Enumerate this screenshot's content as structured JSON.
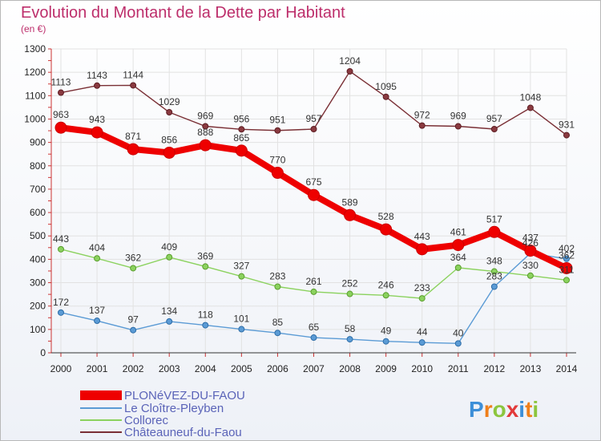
{
  "chart_data": {
    "type": "line",
    "title": "Evolution du Montant de la Dette par Habitant",
    "unit": "(en €)",
    "categories": [
      "2000",
      "2001",
      "2002",
      "2003",
      "2004",
      "2005",
      "2006",
      "2007",
      "2008",
      "2009",
      "2010",
      "2011",
      "2012",
      "2013",
      "2014"
    ],
    "ylim": [
      0,
      1300
    ],
    "yticks": [
      0,
      100,
      200,
      300,
      400,
      500,
      600,
      700,
      800,
      900,
      1000,
      1100,
      1200,
      1300
    ],
    "grid": true,
    "legend_position": "bottom-left",
    "series": [
      {
        "name": "PLONéVEZ-DU-FAOU",
        "color": "#ee0000",
        "values": [
          963,
          943,
          871,
          856,
          888,
          865,
          770,
          675,
          589,
          528,
          443,
          461,
          517,
          437,
          362
        ]
      },
      {
        "name": "Le Cloître-Pleyben",
        "color": "#5b9bd5",
        "values": [
          172,
          137,
          97,
          134,
          118,
          101,
          85,
          65,
          58,
          49,
          44,
          40,
          283,
          426,
          402
        ]
      },
      {
        "name": "Collorec",
        "color": "#8bd25e",
        "values": [
          443,
          404,
          362,
          409,
          369,
          327,
          283,
          261,
          252,
          246,
          233,
          364,
          348,
          330,
          311
        ]
      },
      {
        "name": "Châteauneuf-du-Faou",
        "color": "#7a2f35",
        "values": [
          1113,
          1143,
          1144,
          1029,
          969,
          956,
          951,
          957,
          1204,
          1095,
          972,
          969,
          957,
          1048,
          931
        ]
      }
    ],
    "data_labels": {
      "PLONéVEZ-DU-FAOU": [
        "963",
        "943",
        "871",
        "856",
        "888",
        "865",
        "770",
        "675",
        "589",
        "528",
        "443",
        "461",
        "517",
        "437",
        "362"
      ],
      "Le Cloître-Pleyben": [
        "172",
        "137",
        "97",
        "134",
        "118",
        "101",
        "85",
        "65",
        "58",
        "49",
        "44",
        "40",
        "283",
        "426",
        "402"
      ],
      "Collorec": [
        "443",
        "404",
        "362",
        "409",
        "369",
        "327",
        "283",
        "261",
        "252",
        "246",
        "233",
        "364",
        "348",
        "330",
        "311"
      ],
      "Châteauneuf-du-Faou": [
        "1113",
        "1143",
        "1144",
        "1029",
        "969",
        "956",
        "951",
        "957",
        "1204",
        "1095",
        "972",
        "969",
        "957",
        "1048",
        "931"
      ]
    }
  },
  "brand": {
    "letters": [
      "P",
      "r",
      "o",
      "x",
      "i",
      "t",
      "i"
    ],
    "colors": [
      "#3d8fd8",
      "#ef7f1a",
      "#8cc63e",
      "#e23a3a",
      "#3d8fd8",
      "#ef7f1a",
      "#8cc63e"
    ]
  }
}
